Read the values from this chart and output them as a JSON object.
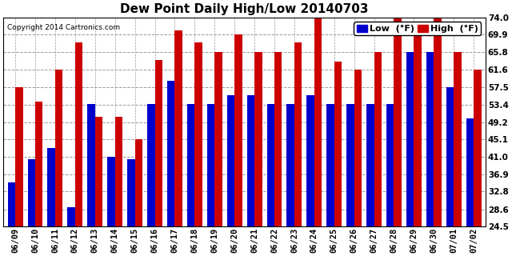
{
  "title": "Dew Point Daily High/Low 20140703",
  "copyright": "Copyright 2014 Cartronics.com",
  "legend_low": "Low  (°F)",
  "legend_high": "High  (°F)",
  "dates": [
    "06/09",
    "06/10",
    "06/11",
    "06/12",
    "06/13",
    "06/14",
    "06/15",
    "06/16",
    "06/17",
    "06/18",
    "06/19",
    "06/20",
    "06/21",
    "06/22",
    "06/23",
    "06/24",
    "06/25",
    "06/26",
    "06/27",
    "06/28",
    "06/29",
    "06/30",
    "07/01",
    "07/02"
  ],
  "low_values": [
    35.0,
    40.5,
    43.0,
    29.0,
    53.5,
    41.0,
    40.5,
    53.5,
    59.0,
    53.5,
    53.5,
    55.5,
    55.5,
    53.5,
    53.5,
    55.5,
    53.5,
    53.5,
    53.5,
    53.5,
    65.8,
    65.8,
    57.5,
    50.0
  ],
  "high_values": [
    57.5,
    54.0,
    61.6,
    68.0,
    50.5,
    50.5,
    45.1,
    64.0,
    71.0,
    68.0,
    65.8,
    69.9,
    65.8,
    65.8,
    68.0,
    74.0,
    63.5,
    61.6,
    65.8,
    74.0,
    71.0,
    74.0,
    65.8,
    61.6
  ],
  "low_color": "#0000cc",
  "high_color": "#cc0000",
  "bg_color": "#ffffff",
  "plot_bg_color": "#ffffff",
  "grid_color": "#999999",
  "ylim_min": 24.5,
  "ylim_max": 74.0,
  "yticks": [
    24.5,
    28.6,
    32.8,
    36.9,
    41.0,
    45.1,
    49.2,
    53.4,
    57.5,
    61.6,
    65.8,
    69.9,
    74.0
  ],
  "bar_width": 0.38,
  "title_fontsize": 11,
  "tick_fontsize": 7.5,
  "legend_fontsize": 8
}
